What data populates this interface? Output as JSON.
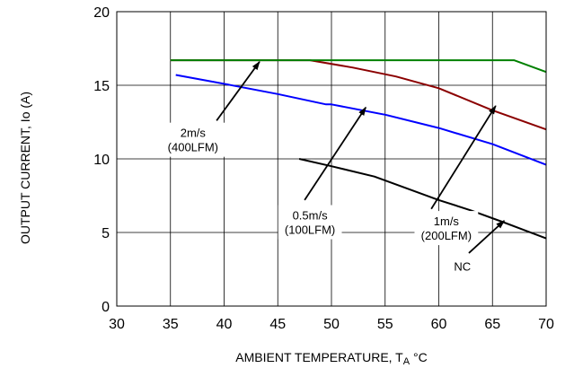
{
  "chart_data": {
    "type": "line",
    "title": "",
    "xlabel": "AMBIENT TEMPERATURE, T",
    "xlabel_sub": "A",
    "xlabel_unit": " °C",
    "ylabel": "OUTPUT CURRENT, Io (A)",
    "xlim": [
      30,
      70
    ],
    "ylim": [
      0,
      20
    ],
    "xticks": [
      30,
      35,
      40,
      45,
      50,
      55,
      60,
      65,
      70
    ],
    "yticks": [
      0,
      5,
      10,
      15,
      20
    ],
    "grid": true,
    "legend": "none",
    "series": [
      {
        "color": "#000000",
        "x": [
          47,
          50,
          54,
          57,
          60,
          63,
          66,
          70
        ],
        "y": [
          10.0,
          9.5,
          8.8,
          8.0,
          7.2,
          6.5,
          5.7,
          4.6
        ]
      },
      {
        "color": "#0000ff",
        "x": [
          35.5,
          40,
          45,
          49.5,
          50,
          55,
          60,
          65,
          70
        ],
        "y": [
          15.7,
          15.1,
          14.4,
          13.7,
          13.7,
          13.0,
          12.1,
          11.0,
          9.6
        ]
      },
      {
        "color": "#8b0000",
        "x": [
          35,
          48,
          52,
          56,
          60,
          65,
          70
        ],
        "y": [
          16.7,
          16.7,
          16.2,
          15.6,
          14.8,
          13.3,
          12.0
        ]
      },
      {
        "color": "#008000",
        "x": [
          35,
          50,
          55,
          60,
          67,
          70
        ],
        "y": [
          16.7,
          16.7,
          16.7,
          16.7,
          16.7,
          15.9
        ]
      }
    ],
    "annotations": [
      {
        "lines": [
          "2m/s",
          "(400LFM)"
        ],
        "text_x": 37.1,
        "text_y": 11.3,
        "arrow_from": [
          39.3,
          12.6
        ],
        "arrow_to": [
          43.3,
          16.6
        ]
      },
      {
        "lines": [
          "0.5m/s",
          "(100LFM)"
        ],
        "text_x": 48.0,
        "text_y": 5.7,
        "arrow_from": [
          47.5,
          7.2
        ],
        "arrow_to": [
          53.2,
          13.5
        ]
      },
      {
        "lines": [
          "1m/s",
          "(200LFM)"
        ],
        "text_x": 60.7,
        "text_y": 5.3,
        "arrow_from": [
          59.3,
          6.6
        ],
        "arrow_to": [
          65.3,
          13.6
        ]
      },
      {
        "lines": [
          "NC"
        ],
        "text_x": 62.2,
        "text_y": 2.7,
        "arrow_from": [
          62.8,
          3.6
        ],
        "arrow_to": [
          66.1,
          5.8
        ]
      }
    ]
  }
}
